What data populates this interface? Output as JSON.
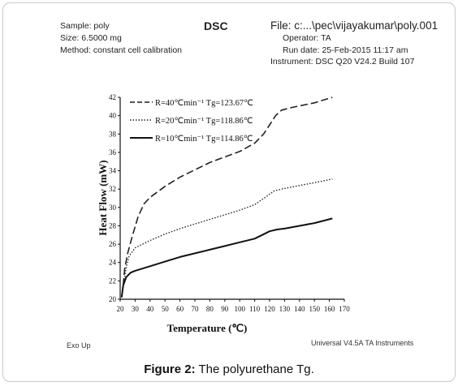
{
  "header": {
    "sample": "Sample: poly",
    "size": "Size: 6.5000 mg",
    "method": "Method: constant cell calibration",
    "title": "DSC",
    "file": "File: c:...\\pec\\vijayakumar\\poly.001",
    "operator": "Operator: TA",
    "run_date": "Run date: 25-Feb-2015 11:17 am",
    "instrument": "Instrument: DSC Q20 V24.2 Build 107"
  },
  "footer": {
    "exo": "Exo Up",
    "software": "Universal V4.5A TA Instruments"
  },
  "caption": {
    "label": "Figure 2:",
    "text": " The polyurethane Tg."
  },
  "chart_data": {
    "type": "line",
    "title": "DSC",
    "xlabel": "Temperature (℃)",
    "ylabel": "Heat Flow (mW)",
    "xlim": [
      20,
      170
    ],
    "ylim": [
      20,
      42
    ],
    "xticks": [
      20,
      30,
      40,
      50,
      60,
      70,
      80,
      90,
      100,
      110,
      120,
      130,
      140,
      150,
      160,
      170
    ],
    "yticks": [
      20,
      22,
      24,
      26,
      28,
      30,
      32,
      34,
      36,
      38,
      40,
      42
    ],
    "legend_position": "top-left",
    "series": [
      {
        "name": "R=40℃min⁻¹  Tg=123.67℃",
        "style": "dashed",
        "color": "#222222",
        "points": [
          [
            22,
            21.5
          ],
          [
            23,
            23.3
          ],
          [
            25,
            25.0
          ],
          [
            28,
            26.8
          ],
          [
            32,
            29.0
          ],
          [
            36,
            30.4
          ],
          [
            40,
            31.1
          ],
          [
            50,
            32.3
          ],
          [
            60,
            33.3
          ],
          [
            70,
            34.1
          ],
          [
            80,
            34.9
          ],
          [
            90,
            35.5
          ],
          [
            100,
            36.1
          ],
          [
            110,
            37.0
          ],
          [
            116,
            38.0
          ],
          [
            120,
            39.0
          ],
          [
            124,
            40.0
          ],
          [
            128,
            40.6
          ],
          [
            135,
            40.9
          ],
          [
            150,
            41.4
          ],
          [
            162,
            42.0
          ]
        ]
      },
      {
        "name": "R=20℃min⁻¹  Tg=118.86℃",
        "style": "dotted",
        "color": "#222222",
        "points": [
          [
            21,
            20.3
          ],
          [
            22,
            21.3
          ],
          [
            24,
            23.5
          ],
          [
            26,
            24.7
          ],
          [
            30,
            25.6
          ],
          [
            35,
            26.0
          ],
          [
            40,
            26.4
          ],
          [
            50,
            27.1
          ],
          [
            60,
            27.7
          ],
          [
            70,
            28.2
          ],
          [
            80,
            28.7
          ],
          [
            90,
            29.2
          ],
          [
            100,
            29.7
          ],
          [
            110,
            30.3
          ],
          [
            118,
            31.2
          ],
          [
            123,
            31.8
          ],
          [
            128,
            32.0
          ],
          [
            140,
            32.4
          ],
          [
            150,
            32.7
          ],
          [
            162,
            33.1
          ]
        ]
      },
      {
        "name": "R=10℃min⁻¹  Tg=114.86℃",
        "style": "solid",
        "color": "#111111",
        "points": [
          [
            21,
            20.2
          ],
          [
            22,
            21.5
          ],
          [
            24,
            22.4
          ],
          [
            27,
            22.9
          ],
          [
            30,
            23.1
          ],
          [
            40,
            23.6
          ],
          [
            50,
            24.1
          ],
          [
            60,
            24.6
          ],
          [
            70,
            25.0
          ],
          [
            80,
            25.4
          ],
          [
            90,
            25.8
          ],
          [
            100,
            26.2
          ],
          [
            110,
            26.6
          ],
          [
            115,
            27.0
          ],
          [
            120,
            27.4
          ],
          [
            125,
            27.6
          ],
          [
            130,
            27.7
          ],
          [
            140,
            28.0
          ],
          [
            150,
            28.3
          ],
          [
            162,
            28.8
          ]
        ]
      }
    ]
  }
}
